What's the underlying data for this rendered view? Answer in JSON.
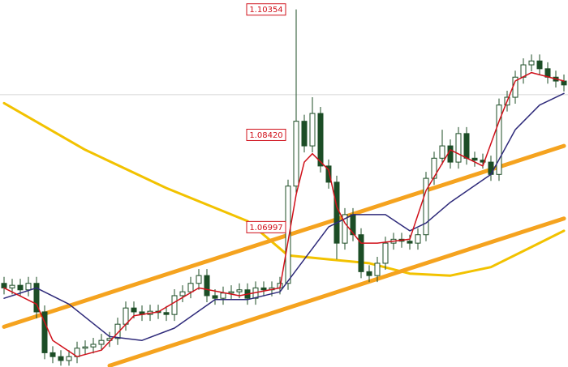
{
  "chart_data": {
    "type": "candlestick",
    "ylim": [
      1.0484,
      1.105
    ],
    "candle_color": "#1c4d26",
    "open": [
      1.0613,
      1.0606,
      1.061,
      1.0603,
      1.0613,
      1.0569,
      1.0506,
      1.05,
      1.0494,
      1.05,
      1.0513,
      1.0515,
      1.0519,
      1.0525,
      1.0528,
      1.055,
      1.0575,
      1.0569,
      1.0565,
      1.057,
      1.0568,
      1.0565,
      1.0594,
      1.06,
      1.0613,
      1.0625,
      1.0594,
      1.059,
      1.0598,
      1.06,
      1.0603,
      1.059,
      1.0606,
      1.0603,
      1.0606,
      1.0613,
      1.0763,
      1.0863,
      1.0825,
      1.0875,
      1.0794,
      1.0769,
      1.0675,
      1.0719,
      1.0688,
      1.0631,
      1.0625,
      1.0644,
      1.0675,
      1.0681,
      1.0678,
      1.0675,
      1.0688,
      1.0775,
      1.0806,
      1.0825,
      1.08,
      1.0844,
      1.0806,
      1.0803,
      1.08,
      1.0781,
      1.0888,
      1.09,
      1.0931,
      1.095,
      1.0956,
      1.0944,
      1.0931,
      1.0925
    ],
    "high": [
      1.0623,
      1.062,
      1.062,
      1.0623,
      1.0623,
      1.0579,
      1.0516,
      1.051,
      1.051,
      1.0523,
      1.0525,
      1.0529,
      1.0535,
      1.0538,
      1.056,
      1.0585,
      1.0585,
      1.0579,
      1.058,
      1.058,
      1.0578,
      1.0604,
      1.061,
      1.0623,
      1.0635,
      1.0635,
      1.0604,
      1.0608,
      1.061,
      1.0613,
      1.0613,
      1.0616,
      1.0616,
      1.0616,
      1.0623,
      1.0773,
      1.10354,
      1.0873,
      1.09,
      1.0885,
      1.0804,
      1.0779,
      1.0729,
      1.0729,
      1.0698,
      1.0641,
      1.0654,
      1.0685,
      1.0691,
      1.0691,
      1.0688,
      1.0698,
      1.0785,
      1.0816,
      1.085,
      1.0835,
      1.0854,
      1.0854,
      1.0816,
      1.0813,
      1.081,
      1.0898,
      1.091,
      1.0941,
      1.096,
      1.0966,
      1.0966,
      1.0954,
      1.0941,
      1.0935
    ],
    "low": [
      1.0596,
      1.0596,
      1.0593,
      1.0593,
      1.0559,
      1.0496,
      1.049,
      1.0486,
      1.0486,
      1.049,
      1.0503,
      1.0505,
      1.0509,
      1.0515,
      1.0518,
      1.054,
      1.0559,
      1.0555,
      1.0555,
      1.0558,
      1.0555,
      1.0555,
      1.0584,
      1.059,
      1.0603,
      1.0584,
      1.058,
      1.058,
      1.0588,
      1.059,
      1.058,
      1.058,
      1.0593,
      1.0593,
      1.0596,
      1.0603,
      1.0753,
      1.0815,
      1.0815,
      1.0784,
      1.0759,
      1.065,
      1.0665,
      1.0678,
      1.0621,
      1.0615,
      1.0615,
      1.0634,
      1.0665,
      1.0668,
      1.0665,
      1.0665,
      1.0678,
      1.0765,
      1.0796,
      1.079,
      1.079,
      1.0796,
      1.0793,
      1.079,
      1.0771,
      1.0771,
      1.0878,
      1.089,
      1.0921,
      1.094,
      1.0934,
      1.0921,
      1.0915,
      1.0909
    ],
    "close": [
      1.0606,
      1.061,
      1.0603,
      1.0613,
      1.0569,
      1.0506,
      1.05,
      1.0494,
      1.05,
      1.0513,
      1.0515,
      1.0519,
      1.0525,
      1.0528,
      1.055,
      1.0575,
      1.0569,
      1.0565,
      1.057,
      1.0568,
      1.0565,
      1.0594,
      1.06,
      1.0613,
      1.0625,
      1.0594,
      1.059,
      1.0598,
      1.06,
      1.0603,
      1.059,
      1.0606,
      1.0603,
      1.0606,
      1.0613,
      1.0763,
      1.0863,
      1.0825,
      1.0875,
      1.0794,
      1.0769,
      1.0675,
      1.0719,
      1.0688,
      1.0631,
      1.0625,
      1.0644,
      1.0675,
      1.0681,
      1.0678,
      1.0675,
      1.0688,
      1.0775,
      1.0806,
      1.0825,
      1.08,
      1.0844,
      1.0806,
      1.0803,
      1.08,
      1.0781,
      1.0888,
      1.09,
      1.0931,
      1.095,
      1.0956,
      1.0944,
      1.0931,
      1.0925,
      1.0919
    ],
    "lines": [
      {
        "color": "#f2c200",
        "x": [
          0,
          10,
          20,
          30,
          35,
          40,
          45,
          50,
          55,
          60,
          65,
          69
        ],
        "values": [
          1.0891,
          1.0819,
          1.076,
          1.0709,
          1.0656,
          1.065,
          1.0644,
          1.0628,
          1.0625,
          1.0638,
          1.0669,
          1.0694
        ]
      },
      {
        "color": "#2e2a7a",
        "x": [
          0,
          4,
          8,
          13,
          17,
          21,
          26,
          30,
          34,
          37,
          40,
          43,
          47,
          50,
          52,
          55,
          60,
          63,
          66,
          69
        ],
        "values": [
          1.059,
          1.0606,
          1.0581,
          1.0531,
          1.0525,
          1.0544,
          1.0588,
          1.0588,
          1.06,
          1.065,
          1.07,
          1.0719,
          1.0719,
          1.0694,
          1.0706,
          1.0738,
          1.0781,
          1.085,
          1.0888,
          1.0906
        ]
      },
      {
        "color": "#d0101a",
        "x": [
          0,
          4,
          6,
          9,
          12,
          16,
          19,
          24,
          29,
          34,
          36,
          37,
          38,
          40,
          41,
          42,
          44,
          46,
          50,
          52,
          55,
          59,
          61,
          63,
          65,
          69
        ],
        "values": [
          1.0606,
          1.0581,
          1.0525,
          1.05,
          1.051,
          1.0563,
          1.0569,
          1.0606,
          1.0594,
          1.0606,
          1.075,
          1.08,
          1.0813,
          1.0788,
          1.0731,
          1.0706,
          1.0675,
          1.0675,
          1.0681,
          1.0756,
          1.0819,
          1.0794,
          1.0863,
          1.0925,
          1.0938,
          1.0925
        ]
      }
    ],
    "trend_lines": [
      {
        "color": "#f5a31f",
        "x": [
          0,
          69
        ],
        "values": [
          1.0546,
          1.0825
        ]
      },
      {
        "color": "#f5a31f",
        "x": [
          13,
          69
        ],
        "values": [
          1.0486,
          1.0713
        ]
      }
    ],
    "reference_line": 1.0904,
    "price_labels": [
      1.10354,
      {
        "value": 1.0842,
        "label": "1.08420"
      },
      1.06997
    ]
  }
}
